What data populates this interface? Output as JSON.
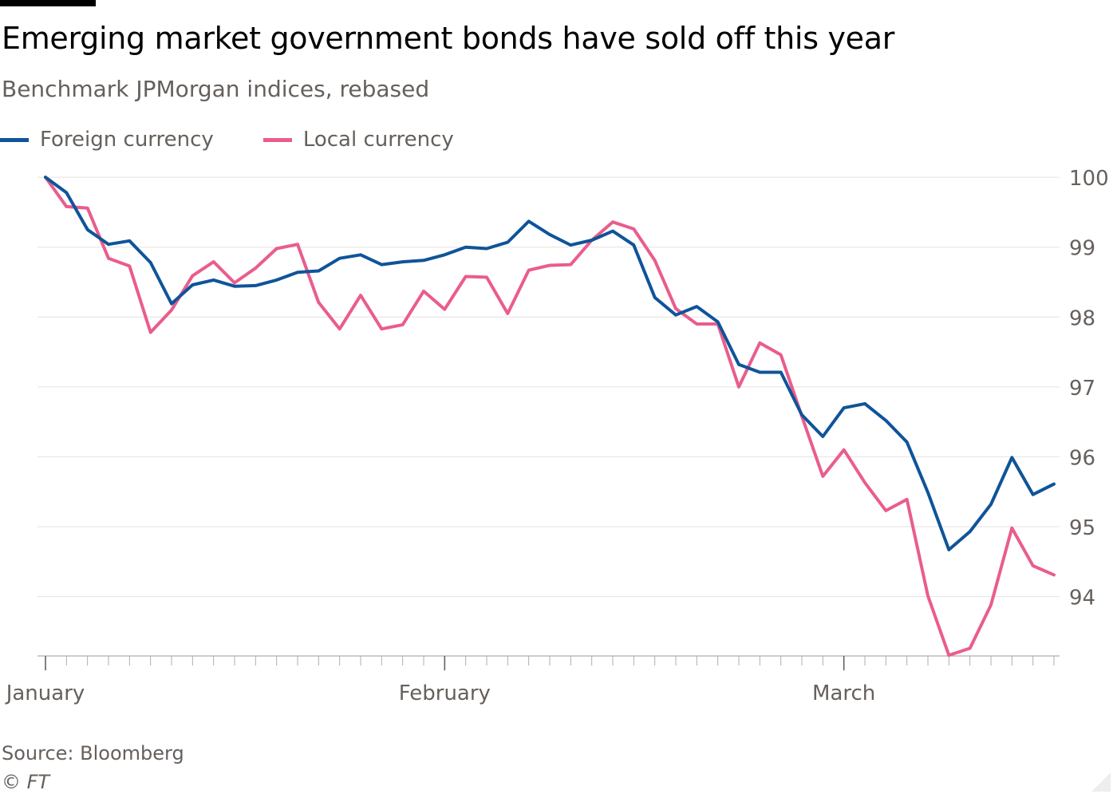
{
  "header": {
    "title": "Emerging market government bonds have sold off this year",
    "subtitle": "Benchmark JPMorgan indices, rebased"
  },
  "footer": {
    "source": "Source: Bloomberg",
    "credit": "© FT"
  },
  "chart_data": {
    "type": "line",
    "title": "Emerging market government bonds have sold off this year",
    "subtitle": "Benchmark JPMorgan indices, rebased",
    "xlabel": "",
    "ylabel": "",
    "x": [
      0,
      1,
      2,
      3,
      4,
      5,
      6,
      7,
      8,
      9,
      10,
      11,
      12,
      13,
      14,
      15,
      16,
      17,
      18,
      19,
      20,
      21,
      22,
      23,
      24,
      25,
      26,
      27,
      28,
      29,
      30,
      31,
      32,
      33,
      34,
      35,
      36,
      37,
      38,
      39,
      40,
      41,
      42,
      43,
      44,
      45,
      46,
      47,
      48
    ],
    "x_tick_labels": [
      {
        "index": 0,
        "label": "January"
      },
      {
        "index": 19,
        "label": "February"
      },
      {
        "index": 38,
        "label": "March"
      }
    ],
    "x_minor_ticks": 49,
    "ylim": [
      93.15,
      100.15
    ],
    "y_ticks": [
      94,
      95,
      96,
      97,
      98,
      99,
      100
    ],
    "y_axis_side": "right",
    "grid": true,
    "legend_position": "top-left",
    "series": [
      {
        "name": "Foreign currency",
        "color": "#0f5499",
        "values": [
          100.0,
          99.78,
          99.25,
          99.04,
          99.09,
          98.78,
          98.19,
          98.46,
          98.53,
          98.44,
          98.45,
          98.53,
          98.64,
          98.66,
          98.84,
          98.89,
          98.75,
          98.79,
          98.81,
          98.89,
          99.0,
          98.98,
          99.07,
          99.37,
          99.18,
          99.03,
          99.1,
          99.23,
          99.03,
          98.28,
          98.03,
          98.15,
          97.93,
          97.32,
          97.21,
          97.21,
          96.6,
          96.29,
          96.7,
          96.76,
          96.52,
          96.21,
          95.49,
          94.67,
          94.93,
          95.32,
          95.99,
          95.46,
          95.61
        ]
      },
      {
        "name": "Local currency",
        "color": "#e95d8c",
        "values": [
          100.0,
          99.58,
          99.56,
          98.84,
          98.73,
          97.78,
          98.1,
          98.59,
          98.79,
          98.49,
          98.7,
          98.98,
          99.04,
          98.21,
          97.83,
          98.31,
          97.83,
          97.89,
          98.37,
          98.11,
          98.58,
          98.57,
          98.05,
          98.67,
          98.74,
          98.75,
          99.1,
          99.36,
          99.26,
          98.81,
          98.12,
          97.9,
          97.9,
          97.0,
          97.63,
          97.46,
          96.58,
          95.72,
          96.1,
          95.63,
          95.23,
          95.39,
          94.01,
          93.16,
          93.26,
          93.88,
          94.98,
          94.44,
          94.31
        ]
      }
    ]
  }
}
